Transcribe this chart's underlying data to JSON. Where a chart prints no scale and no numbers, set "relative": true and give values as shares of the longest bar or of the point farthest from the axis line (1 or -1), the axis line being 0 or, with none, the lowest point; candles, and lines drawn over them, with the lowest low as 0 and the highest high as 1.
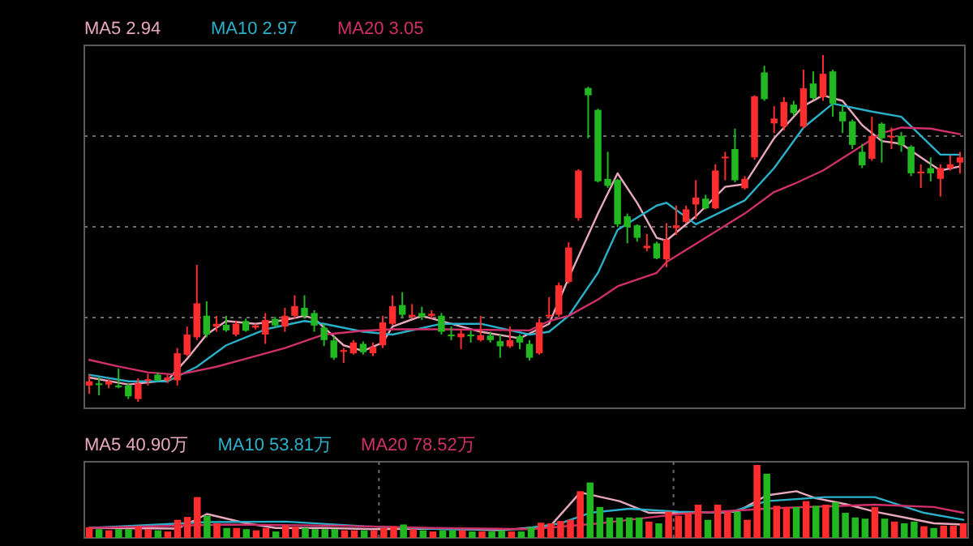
{
  "chart_data": [
    {
      "type": "candlestick",
      "relative": true,
      "grid": "y",
      "legend": "top left",
      "categories": [
        null,
        null,
        null,
        null,
        null,
        null,
        null,
        null,
        null,
        null,
        null,
        null,
        null,
        null,
        null,
        null,
        null,
        null,
        null,
        null,
        null,
        null,
        null,
        null,
        null,
        null,
        null,
        null,
        null,
        null,
        null,
        null,
        null,
        null,
        null,
        null,
        null,
        null,
        null,
        null,
        null,
        null,
        null,
        null,
        null,
        null,
        null,
        null,
        null,
        null,
        null,
        null,
        null,
        null,
        null,
        null,
        null,
        null,
        null,
        null,
        null,
        null,
        null,
        null,
        null,
        null,
        null,
        null,
        null,
        null,
        null,
        null,
        null,
        null,
        null,
        null,
        null,
        null,
        null,
        null,
        null,
        null,
        null,
        null,
        null,
        null,
        null,
        null,
        null,
        null
      ],
      "ohlc": [
        [
          0.047,
          0.078,
          0.023,
          0.059
        ],
        [
          0.053,
          0.07,
          0.019,
          0.05
        ],
        [
          0.05,
          0.065,
          0.039,
          0.059
        ],
        [
          0.047,
          0.096,
          0.039,
          0.043
        ],
        [
          0.047,
          0.053,
          0.008,
          0.016
        ],
        [
          0.008,
          0.068,
          0.0,
          0.053
        ],
        [
          0.062,
          0.081,
          0.047,
          0.065
        ],
        [
          0.078,
          0.085,
          0.059,
          0.062
        ],
        [
          0.062,
          0.078,
          0.054,
          0.07
        ],
        [
          0.062,
          0.155,
          0.047,
          0.14
        ],
        [
          0.136,
          0.217,
          0.132,
          0.194
        ],
        [
          0.186,
          0.395,
          0.178,
          0.284
        ],
        [
          0.248,
          0.29,
          0.186,
          0.194
        ],
        [
          0.217,
          0.248,
          0.202,
          0.225
        ],
        [
          0.222,
          0.248,
          0.202,
          0.206
        ],
        [
          0.194,
          0.233,
          0.189,
          0.225
        ],
        [
          0.233,
          0.24,
          0.202,
          0.205
        ],
        [
          0.214,
          0.225,
          0.209,
          0.22
        ],
        [
          0.194,
          0.256,
          0.167,
          0.236
        ],
        [
          0.239,
          0.245,
          0.214,
          0.22
        ],
        [
          0.217,
          0.271,
          0.202,
          0.248
        ],
        [
          0.248,
          0.307,
          0.24,
          0.276
        ],
        [
          0.271,
          0.307,
          0.24,
          0.248
        ],
        [
          0.256,
          0.264,
          0.202,
          0.22
        ],
        [
          0.214,
          0.225,
          0.161,
          0.178
        ],
        [
          0.177,
          0.189,
          0.121,
          0.127
        ],
        [
          0.146,
          0.155,
          0.112,
          0.149
        ],
        [
          0.14,
          0.178,
          0.136,
          0.171
        ],
        [
          0.167,
          0.174,
          0.136,
          0.143
        ],
        [
          0.14,
          0.171,
          0.132,
          0.158
        ],
        [
          0.163,
          0.248,
          0.155,
          0.229
        ],
        [
          0.225,
          0.307,
          0.22,
          0.276
        ],
        [
          0.279,
          0.316,
          0.245,
          0.251
        ],
        [
          0.245,
          0.282,
          0.24,
          0.251
        ],
        [
          0.256,
          0.274,
          0.236,
          0.245
        ],
        [
          0.248,
          0.264,
          0.24,
          0.254
        ],
        [
          0.248,
          0.256,
          0.194,
          0.202
        ],
        [
          0.194,
          0.217,
          0.178,
          0.189
        ],
        [
          0.186,
          0.209,
          0.152,
          0.197
        ],
        [
          0.194,
          0.205,
          0.171,
          0.189
        ],
        [
          0.178,
          0.248,
          0.174,
          0.192
        ],
        [
          0.191,
          0.202,
          0.171,
          0.178
        ],
        [
          0.175,
          0.194,
          0.127,
          0.16
        ],
        [
          0.16,
          0.217,
          0.155,
          0.178
        ],
        [
          0.189,
          0.194,
          0.152,
          0.171
        ],
        [
          0.167,
          0.178,
          0.119,
          0.127
        ],
        [
          0.14,
          0.24,
          0.136,
          0.229
        ],
        [
          0.248,
          0.302,
          0.24,
          0.251
        ],
        [
          0.251,
          0.344,
          0.245,
          0.336
        ],
        [
          0.346,
          0.46,
          0.341,
          0.445
        ],
        [
          0.53,
          0.671,
          0.522,
          0.667
        ],
        [
          0.905,
          0.909,
          0.76,
          0.884
        ],
        [
          0.842,
          0.845,
          0.633,
          0.636
        ],
        [
          0.643,
          0.721,
          0.617,
          0.623
        ],
        [
          0.64,
          0.643,
          0.504,
          0.512
        ],
        [
          0.535,
          0.543,
          0.457,
          0.504
        ],
        [
          0.509,
          0.512,
          0.462,
          0.473
        ],
        [
          0.443,
          0.484,
          0.434,
          0.45
        ],
        [
          0.457,
          0.462,
          0.411,
          0.414
        ],
        [
          0.411,
          0.515,
          0.388,
          0.468
        ],
        [
          0.501,
          0.566,
          0.481,
          0.509
        ],
        [
          0.519,
          0.566,
          0.515,
          0.555
        ],
        [
          0.569,
          0.639,
          0.527,
          0.589
        ],
        [
          0.586,
          0.597,
          0.555,
          0.558
        ],
        [
          0.558,
          0.685,
          0.555,
          0.667
        ],
        [
          0.704,
          0.721,
          0.639,
          0.707
        ],
        [
          0.729,
          0.788,
          0.633,
          0.639
        ],
        [
          0.616,
          0.651,
          0.612,
          0.643
        ],
        [
          0.705,
          0.884,
          0.698,
          0.881
        ],
        [
          0.95,
          0.969,
          0.868,
          0.873
        ],
        [
          0.803,
          0.853,
          0.775,
          0.817
        ],
        [
          0.794,
          0.879,
          0.783,
          0.865
        ],
        [
          0.857,
          0.868,
          0.825,
          0.833
        ],
        [
          0.794,
          0.958,
          0.788,
          0.904
        ],
        [
          0.918,
          0.953,
          0.871,
          0.876
        ],
        [
          0.879,
          1.0,
          0.868,
          0.946
        ],
        [
          0.953,
          0.958,
          0.822,
          0.86
        ],
        [
          0.837,
          0.856,
          0.775,
          0.809
        ],
        [
          0.809,
          0.814,
          0.729,
          0.741
        ],
        [
          0.721,
          0.744,
          0.674,
          0.682
        ],
        [
          0.701,
          0.822,
          0.695,
          0.767
        ],
        [
          0.802,
          0.806,
          0.69,
          0.76
        ],
        [
          0.763,
          0.791,
          0.729,
          0.767
        ],
        [
          0.767,
          0.778,
          0.721,
          0.74
        ],
        [
          0.736,
          0.74,
          0.651,
          0.659
        ],
        [
          0.659,
          0.685,
          0.617,
          0.664
        ],
        [
          0.674,
          0.705,
          0.636,
          0.659
        ],
        [
          0.643,
          0.685,
          0.592,
          0.674
        ],
        [
          0.674,
          0.71,
          0.667,
          0.685
        ],
        [
          0.69,
          0.721,
          0.659,
          0.705
        ]
      ],
      "colors": [
        "#ff2d2d",
        "#22b822",
        "#ff2d2d",
        "#22b822",
        "#22b822",
        "#ff2d2d",
        "#ff2d2d",
        "#22b822",
        "#ff2d2d",
        "#ff2d2d",
        "#ff2d2d",
        "#ff2d2d",
        "#22b822",
        "#ff2d2d",
        "#22b822",
        "#ff2d2d",
        "#22b822",
        "#ff2d2d",
        "#ff2d2d",
        "#22b822",
        "#ff2d2d",
        "#ff2d2d",
        "#22b822",
        "#22b822",
        "#22b822",
        "#22b822",
        "#ff2d2d",
        "#ff2d2d",
        "#22b822",
        "#ff2d2d",
        "#ff2d2d",
        "#ff2d2d",
        "#22b822",
        "#ff2d2d",
        "#22b822",
        "#ff2d2d",
        "#22b822",
        "#22b822",
        "#ff2d2d",
        "#22b822",
        "#ff2d2d",
        "#22b822",
        "#22b822",
        "#ff2d2d",
        "#22b822",
        "#22b822",
        "#ff2d2d",
        "#ff2d2d",
        "#ff2d2d",
        "#ff2d2d",
        "#ff2d2d",
        "#22b822",
        "#22b822",
        "#22b822",
        "#22b822",
        "#22b822",
        "#22b822",
        "#ff2d2d",
        "#22b822",
        "#ff2d2d",
        "#ff2d2d",
        "#ff2d2d",
        "#ff2d2d",
        "#22b822",
        "#ff2d2d",
        "#ff2d2d",
        "#22b822",
        "#ff2d2d",
        "#ff2d2d",
        "#22b822",
        "#ff2d2d",
        "#ff2d2d",
        "#22b822",
        "#ff2d2d",
        "#22b822",
        "#ff2d2d",
        "#22b822",
        "#22b822",
        "#22b822",
        "#22b822",
        "#ff2d2d",
        "#22b822",
        "#ff2d2d",
        "#22b822",
        "#22b822",
        "#ff2d2d",
        "#22b822",
        "#ff2d2d",
        "#ff2d2d",
        "#ff2d2d"
      ],
      "series": [
        {
          "type": "line",
          "name": "MA5 2.94",
          "color": "#e8a8bc",
          "values": [
            0.07,
            null,
            null,
            null,
            0.05,
            null,
            null,
            null,
            0.062,
            null,
            0.124,
            null,
            0.194,
            null,
            0.233,
            null,
            null,
            0.225,
            null,
            null,
            0.236,
            null,
            0.248,
            0.24,
            null,
            null,
            0.163,
            null,
            0.147,
            null,
            0.171,
            0.217,
            null,
            null,
            0.248,
            null,
            null,
            0.225,
            null,
            null,
            0.202,
            null,
            null,
            null,
            0.183,
            null,
            null,
            0.225,
            null,
            0.357,
            null,
            null,
            0.543,
            null,
            0.659,
            null,
            0.574,
            null,
            0.473,
            0.465,
            null,
            null,
            0.535,
            null,
            null,
            0.62,
            null,
            0.628,
            null,
            null,
            0.76,
            null,
            null,
            0.853,
            null,
            0.884,
            null,
            0.868,
            null,
            0.798,
            null,
            0.752,
            null,
            0.744,
            null,
            0.705,
            null,
            0.667,
            null,
            0.679
          ]
        },
        {
          "type": "line",
          "name": "MA10 2.97",
          "color": "#2ab0c8",
          "values": [
            0.078,
            null,
            null,
            null,
            0.059,
            null,
            null,
            null,
            0.059,
            null,
            null,
            0.101,
            null,
            null,
            0.163,
            null,
            null,
            null,
            0.209,
            null,
            null,
            null,
            0.233,
            null,
            0.225,
            null,
            null,
            null,
            0.202,
            null,
            null,
            0.194,
            null,
            null,
            null,
            null,
            0.225,
            null,
            null,
            null,
            0.225,
            null,
            null,
            null,
            null,
            0.194,
            null,
            0.202,
            null,
            0.248,
            null,
            null,
            0.372,
            null,
            0.496,
            null,
            null,
            null,
            0.566,
            0.574,
            null,
            null,
            0.512,
            null,
            null,
            null,
            null,
            0.581,
            null,
            null,
            0.674,
            null,
            null,
            0.791,
            null,
            null,
            0.86,
            null,
            null,
            null,
            0.837,
            null,
            null,
            0.822,
            null,
            0.767,
            null,
            0.713,
            null,
            0.713
          ]
        },
        {
          "type": "line",
          "name": "MA20 3.05",
          "color": "#d0306a",
          "values": [
            0.121,
            null,
            null,
            0.102,
            null,
            null,
            0.085,
            null,
            null,
            0.078,
            null,
            null,
            null,
            0.101,
            null,
            null,
            0.124,
            null,
            null,
            null,
            0.155,
            null,
            null,
            null,
            0.194,
            null,
            null,
            null,
            0.205,
            null,
            null,
            0.209,
            null,
            null,
            null,
            null,
            0.209,
            null,
            null,
            null,
            null,
            null,
            null,
            null,
            null,
            0.206,
            null,
            0.233,
            null,
            0.248,
            null,
            null,
            0.295,
            null,
            0.333,
            null,
            null,
            null,
            0.372,
            0.403,
            null,
            null,
            null,
            0.473,
            null,
            null,
            null,
            0.543,
            null,
            null,
            0.605,
            null,
            0.628,
            null,
            null,
            0.667,
            null,
            null,
            0.721,
            null,
            null,
            0.775,
            null,
            0.791,
            null,
            null,
            0.788,
            null,
            null,
            0.772
          ]
        }
      ]
    },
    {
      "type": "bar",
      "relative": true,
      "grid": "x",
      "legend": "top left",
      "categories": [
        null,
        null,
        null,
        null,
        null,
        null,
        null,
        null,
        null,
        null,
        null,
        null,
        null,
        null,
        null,
        null,
        null,
        null,
        null,
        null,
        null,
        null,
        null,
        null,
        null,
        null,
        null,
        null,
        null,
        null,
        null,
        null,
        null,
        null,
        null,
        null,
        null,
        null,
        null,
        null,
        null,
        null,
        null,
        null,
        null,
        null,
        null,
        null,
        null,
        null,
        null,
        null,
        null,
        null,
        null,
        null,
        null,
        null,
        null,
        null,
        null,
        null,
        null,
        null,
        null,
        null,
        null,
        null,
        null,
        null,
        null,
        null,
        null,
        null,
        null,
        null,
        null,
        null,
        null,
        null,
        null,
        null,
        null,
        null,
        null,
        null,
        null,
        null,
        null,
        null
      ],
      "values": [
        0.144,
        0.12,
        0.104,
        0.12,
        0.12,
        0.16,
        0.12,
        0.104,
        0.088,
        0.248,
        0.288,
        0.56,
        0.304,
        0.2,
        0.136,
        0.136,
        0.12,
        0.104,
        0.136,
        0.088,
        0.168,
        0.152,
        0.136,
        0.12,
        0.12,
        0.12,
        0.104,
        0.104,
        0.104,
        0.104,
        0.136,
        0.16,
        0.184,
        0.12,
        0.104,
        0.088,
        0.104,
        0.104,
        0.104,
        0.088,
        0.088,
        0.088,
        0.104,
        0.088,
        0.088,
        0.144,
        0.208,
        0.2,
        0.232,
        0.248,
        0.64,
        0.76,
        0.424,
        0.28,
        0.28,
        0.28,
        0.28,
        0.224,
        0.2,
        0.36,
        0.304,
        0.344,
        0.456,
        0.248,
        0.456,
        0.36,
        0.36,
        0.248,
        1.0,
        0.88,
        0.44,
        0.424,
        0.424,
        0.504,
        0.44,
        0.456,
        0.488,
        0.344,
        0.28,
        0.264,
        0.424,
        0.264,
        0.224,
        0.2,
        0.224,
        0.16,
        0.136,
        0.168,
        0.168,
        0.2
      ],
      "colors": [
        "#ff2d2d",
        "#22b822",
        "#ff2d2d",
        "#22b822",
        "#22b822",
        "#ff2d2d",
        "#ff2d2d",
        "#22b822",
        "#ff2d2d",
        "#ff2d2d",
        "#ff2d2d",
        "#ff2d2d",
        "#22b822",
        "#ff2d2d",
        "#22b822",
        "#ff2d2d",
        "#22b822",
        "#ff2d2d",
        "#ff2d2d",
        "#22b822",
        "#ff2d2d",
        "#ff2d2d",
        "#22b822",
        "#22b822",
        "#22b822",
        "#22b822",
        "#ff2d2d",
        "#ff2d2d",
        "#22b822",
        "#ff2d2d",
        "#ff2d2d",
        "#ff2d2d",
        "#22b822",
        "#ff2d2d",
        "#22b822",
        "#ff2d2d",
        "#22b822",
        "#22b822",
        "#ff2d2d",
        "#22b822",
        "#ff2d2d",
        "#22b822",
        "#22b822",
        "#ff2d2d",
        "#22b822",
        "#22b822",
        "#ff2d2d",
        "#ff2d2d",
        "#ff2d2d",
        "#ff2d2d",
        "#ff2d2d",
        "#22b822",
        "#22b822",
        "#22b822",
        "#22b822",
        "#22b822",
        "#22b822",
        "#ff2d2d",
        "#22b822",
        "#ff2d2d",
        "#ff2d2d",
        "#ff2d2d",
        "#ff2d2d",
        "#22b822",
        "#ff2d2d",
        "#ff2d2d",
        "#22b822",
        "#ff2d2d",
        "#ff2d2d",
        "#22b822",
        "#ff2d2d",
        "#ff2d2d",
        "#22b822",
        "#ff2d2d",
        "#22b822",
        "#ff2d2d",
        "#22b822",
        "#22b822",
        "#22b822",
        "#22b822",
        "#ff2d2d",
        "#22b822",
        "#ff2d2d",
        "#22b822",
        "#22b822",
        "#ff2d2d",
        "#22b822",
        "#ff2d2d",
        "#ff2d2d",
        "#ff2d2d"
      ],
      "series": [
        {
          "type": "line",
          "name": "MA5 40.90万",
          "color": "#e8a8bc",
          "values": [
            0.136,
            null,
            null,
            null,
            null,
            null,
            null,
            null,
            null,
            0.128,
            null,
            null,
            0.328,
            null,
            null,
            null,
            0.2,
            null,
            null,
            0.136,
            null,
            null,
            null,
            null,
            0.136,
            null,
            null,
            null,
            null,
            0.12,
            null,
            null,
            null,
            null,
            null,
            0.128,
            null,
            null,
            null,
            null,
            null,
            null,
            0.104,
            null,
            null,
            null,
            null,
            0.168,
            null,
            null,
            0.624,
            null,
            null,
            null,
            0.504,
            null,
            null,
            0.344,
            null,
            null,
            null,
            0.344,
            null,
            null,
            null,
            null,
            0.36,
            null,
            null,
            0.584,
            null,
            null,
            0.64,
            null,
            0.544,
            null,
            null,
            0.464,
            null,
            null,
            0.36,
            null,
            null,
            0.28,
            null,
            null,
            0.2,
            null,
            null,
            0.184
          ]
        },
        {
          "type": "line",
          "name": "MA10 53.81万",
          "color": "#2ab0c8",
          "values": [
            0.136,
            null,
            null,
            null,
            null,
            null,
            null,
            null,
            null,
            null,
            null,
            null,
            0.216,
            null,
            null,
            null,
            null,
            null,
            null,
            null,
            0.224,
            null,
            null,
            null,
            null,
            null,
            null,
            null,
            0.16,
            null,
            null,
            null,
            null,
            null,
            null,
            null,
            0.12,
            null,
            null,
            null,
            null,
            null,
            null,
            null,
            0.12,
            null,
            null,
            null,
            0.2,
            null,
            null,
            0.344,
            null,
            null,
            null,
            0.4,
            null,
            null,
            null,
            null,
            0.36,
            null,
            null,
            null,
            null,
            0.344,
            null,
            null,
            null,
            0.504,
            null,
            null,
            null,
            null,
            null,
            0.56,
            null,
            null,
            null,
            null,
            0.56,
            null,
            null,
            null,
            null,
            0.344,
            null,
            null,
            null,
            0.248
          ]
        },
        {
          "type": "line",
          "name": "MA20 78.52万",
          "color": "#d0306a",
          "values": [
            0.136,
            null,
            null,
            null,
            null,
            null,
            null,
            null,
            null,
            null,
            null,
            null,
            null,
            null,
            0.184,
            null,
            null,
            null,
            null,
            null,
            null,
            null,
            null,
            null,
            null,
            0.168,
            null,
            null,
            null,
            null,
            null,
            null,
            null,
            null,
            null,
            0.136,
            null,
            null,
            null,
            null,
            null,
            null,
            null,
            null,
            null,
            0.12,
            null,
            null,
            null,
            null,
            null,
            null,
            0.2,
            null,
            null,
            null,
            null,
            null,
            null,
            null,
            0.328,
            null,
            null,
            null,
            null,
            null,
            null,
            null,
            null,
            null,
            0.408,
            null,
            null,
            null,
            null,
            null,
            null,
            null,
            null,
            null,
            0.456,
            null,
            null,
            null,
            null,
            null,
            0.424,
            null,
            null,
            0.344
          ]
        }
      ]
    }
  ]
}
